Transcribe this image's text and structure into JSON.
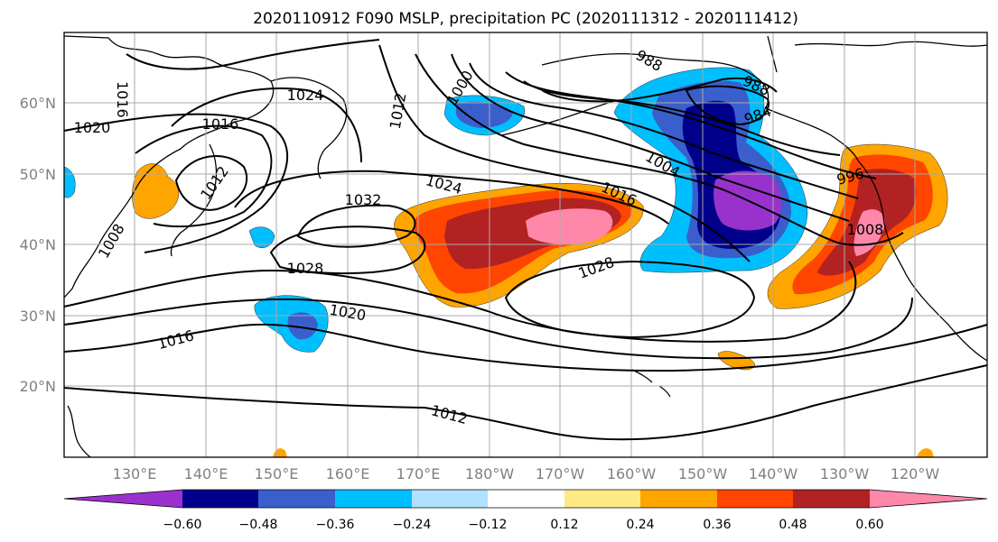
{
  "title": "2020110912 F090 MSLP, precipitation PC (2020111312 - 2020111412)",
  "map": {
    "lat_ticks": [
      "20°N",
      "30°N",
      "40°N",
      "50°N",
      "60°N"
    ],
    "lon_ticks": [
      "130°E",
      "140°E",
      "150°E",
      "160°E",
      "170°E",
      "180°W",
      "170°W",
      "160°W",
      "150°W",
      "140°W",
      "130°W",
      "120°W"
    ],
    "grid": true,
    "isobar_labels": [
      "1016",
      "1024",
      "1020",
      "1016",
      "1012",
      "1008",
      "1032",
      "1028",
      "1024",
      "1012",
      "1000",
      "988",
      "988",
      "984",
      "1004",
      "1016",
      "1028",
      "996",
      "1008",
      "1020",
      "1016",
      "1012"
    ]
  },
  "colorbar": {
    "ticks": [
      "−0.60",
      "−0.48",
      "−0.36",
      "−0.24",
      "−0.12",
      "0.12",
      "0.24",
      "0.36",
      "0.48",
      "0.60"
    ],
    "colors": [
      "#9932cc",
      "#00008b",
      "#3a5fcd",
      "#00bfff",
      "#b0e2ff",
      "#ffffff",
      "#ffe985",
      "#ffa500",
      "#ff4500",
      "#b22222",
      "#ff88aa"
    ]
  }
}
